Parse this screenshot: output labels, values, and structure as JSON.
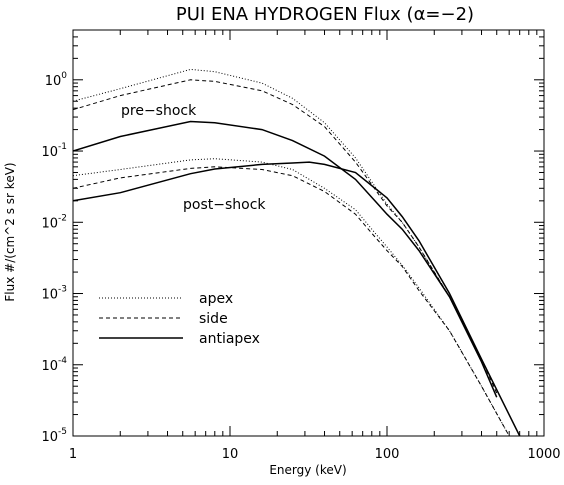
{
  "chart_data": {
    "type": "line",
    "title": "PUI ENA HYDROGEN Flux (α=−2)",
    "xlabel": "Energy (keV)",
    "ylabel": "Flux #/(cm^2 s sr keV)",
    "xscale": "log",
    "yscale": "log",
    "xlim": [
      1,
      1000
    ],
    "ylim": [
      1e-05,
      5
    ],
    "x_tick_labels": [
      "1",
      "10",
      "100",
      "1000"
    ],
    "y_ticks": [
      {
        "base": "10",
        "exp": "-5"
      },
      {
        "base": "10",
        "exp": "-4"
      },
      {
        "base": "10",
        "exp": "-3"
      },
      {
        "base": "10",
        "exp": "-2"
      },
      {
        "base": "10",
        "exp": "-1"
      },
      {
        "base": "10",
        "exp": "0"
      }
    ],
    "annotations": {
      "pre_shock": "pre−shock",
      "post_shock": "post−shock"
    },
    "legend": {
      "placement": "lower-left",
      "entries": [
        {
          "label": "apex",
          "style": "dotted"
        },
        {
          "label": "side",
          "style": "dashed"
        },
        {
          "label": "antiapex",
          "style": "solid"
        }
      ]
    },
    "series": [
      {
        "group": "pre-shock",
        "line_style": "dotted",
        "x": [
          1,
          2,
          5.6,
          8,
          16,
          25,
          40,
          63,
          100,
          125,
          160,
          250,
          400,
          500
        ],
        "y": [
          0.5,
          0.75,
          1.4,
          1.3,
          0.9,
          0.55,
          0.25,
          0.08,
          0.018,
          0.01,
          0.0045,
          0.0009,
          0.00011,
          3.5e-05
        ]
      },
      {
        "group": "pre-shock",
        "line_style": "dashed",
        "x": [
          1,
          2,
          5.6,
          8,
          16,
          25,
          40,
          63,
          100,
          125,
          160,
          250,
          400,
          500
        ],
        "y": [
          0.38,
          0.6,
          1.0,
          0.95,
          0.7,
          0.45,
          0.22,
          0.07,
          0.017,
          0.01,
          0.0045,
          0.0009,
          0.00012,
          4e-05
        ]
      },
      {
        "group": "pre-shock",
        "line_style": "solid",
        "x": [
          1,
          2,
          5.6,
          8,
          16,
          25,
          40,
          63,
          100,
          125,
          160,
          250,
          400,
          500
        ],
        "y": [
          0.1,
          0.16,
          0.26,
          0.25,
          0.2,
          0.14,
          0.085,
          0.04,
          0.013,
          0.008,
          0.004,
          0.0009,
          0.00011,
          3.5e-05
        ]
      },
      {
        "group": "post-shock",
        "line_style": "dotted",
        "x": [
          1,
          2,
          5.6,
          8,
          16,
          25,
          40,
          63,
          80,
          100,
          125,
          160,
          250,
          400,
          600
        ],
        "y": [
          0.045,
          0.055,
          0.075,
          0.078,
          0.07,
          0.055,
          0.03,
          0.015,
          0.008,
          0.0045,
          0.0025,
          0.0012,
          0.0003,
          5e-05,
          1e-05
        ]
      },
      {
        "group": "post-shock",
        "line_style": "dashed",
        "x": [
          1,
          2,
          5.6,
          8,
          16,
          25,
          40,
          63,
          80,
          100,
          125,
          160,
          250,
          400,
          600
        ],
        "y": [
          0.03,
          0.042,
          0.057,
          0.06,
          0.055,
          0.045,
          0.027,
          0.013,
          0.007,
          0.004,
          0.0024,
          0.0011,
          0.0003,
          5e-05,
          1e-05
        ]
      },
      {
        "group": "post-shock",
        "line_style": "solid",
        "x": [
          1,
          2,
          5.6,
          8,
          16,
          25,
          32,
          40,
          63,
          100,
          125,
          160,
          250,
          400,
          700
        ],
        "y": [
          0.02,
          0.026,
          0.048,
          0.056,
          0.065,
          0.068,
          0.07,
          0.065,
          0.05,
          0.022,
          0.012,
          0.0055,
          0.001,
          0.00012,
          1e-05
        ]
      }
    ]
  }
}
